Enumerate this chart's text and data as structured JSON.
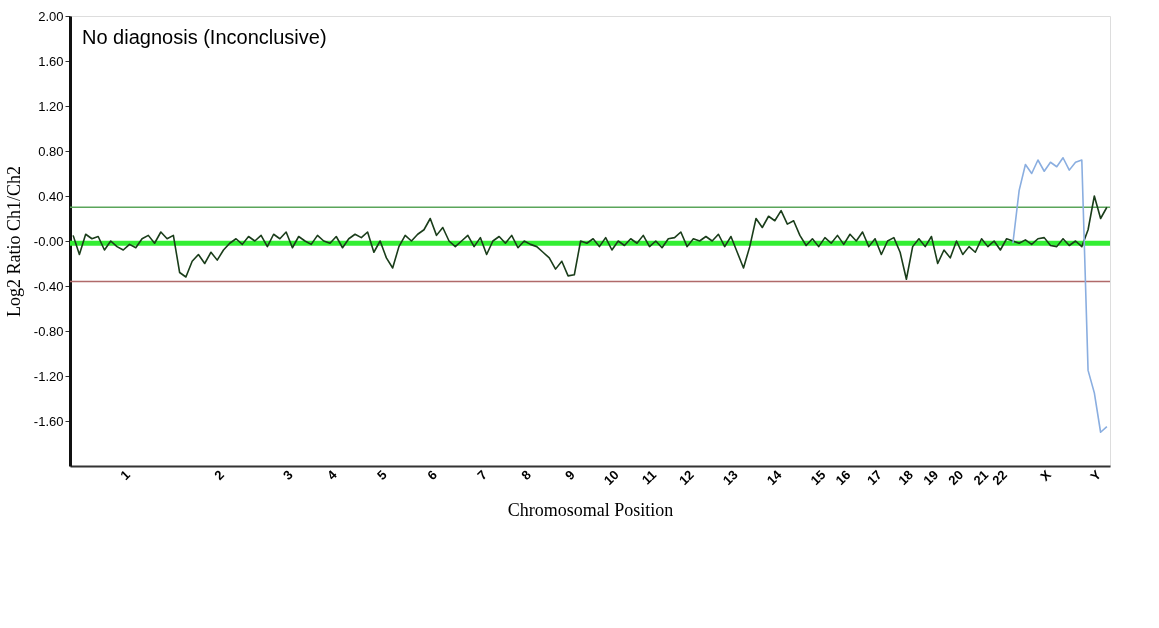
{
  "chart_data": {
    "type": "line",
    "xlabel": "Chromosomal Position",
    "ylabel": "Log2 Ratio Ch1/Ch2",
    "annotations": [
      "No diagnosis (Inconclusive)"
    ],
    "categories": [
      null,
      null,
      null,
      null,
      null,
      null,
      null,
      null,
      "1",
      null,
      null,
      null,
      null,
      null,
      null,
      null,
      null,
      null,
      null,
      null,
      null,
      null,
      null,
      "2",
      null,
      null,
      null,
      null,
      null,
      null,
      null,
      null,
      null,
      null,
      "3",
      null,
      null,
      null,
      null,
      null,
      null,
      "4",
      null,
      null,
      null,
      null,
      null,
      null,
      null,
      "5",
      null,
      null,
      null,
      null,
      null,
      null,
      null,
      "6",
      null,
      null,
      null,
      null,
      null,
      null,
      null,
      "7",
      null,
      null,
      null,
      null,
      null,
      null,
      "8",
      null,
      null,
      null,
      null,
      null,
      null,
      "9",
      null,
      null,
      null,
      null,
      null,
      null,
      "10",
      null,
      null,
      null,
      null,
      null,
      "11",
      null,
      null,
      null,
      null,
      null,
      "12",
      null,
      null,
      null,
      null,
      null,
      null,
      "13",
      null,
      null,
      null,
      null,
      null,
      null,
      "14",
      null,
      null,
      null,
      null,
      null,
      null,
      "15",
      null,
      null,
      null,
      "16",
      null,
      null,
      null,
      null,
      "17",
      null,
      null,
      null,
      null,
      "18",
      null,
      null,
      null,
      "19",
      null,
      null,
      null,
      "20",
      null,
      null,
      null,
      "21",
      null,
      null,
      "22",
      null,
      null,
      null,
      null,
      null,
      null,
      "X",
      null,
      null,
      null,
      null,
      null,
      null,
      null,
      "Y",
      null,
      null
    ],
    "ylim": [
      -2,
      2
    ],
    "yticks": [
      {
        "value": 2,
        "label": "2.00"
      },
      {
        "value": 1.6,
        "label": "1.60"
      },
      {
        "value": 1.2,
        "label": "1.20"
      },
      {
        "value": 0.8,
        "label": "0.80"
      },
      {
        "value": 0.4,
        "label": "0.40"
      },
      {
        "value": 0,
        "label": "-0.00"
      },
      {
        "value": -0.4,
        "label": "-0.40"
      },
      {
        "value": -0.8,
        "label": "-0.80"
      },
      {
        "value": -1.2,
        "label": "-1.20"
      },
      {
        "value": -1.6,
        "label": "-1.60"
      }
    ],
    "grid": false,
    "ref_lines": [
      {
        "axis": "y",
        "value": -0.02,
        "color": "#33ee33"
      },
      {
        "axis": "y",
        "value": 0.3,
        "color": "#5aa55a"
      },
      {
        "axis": "y",
        "value": -0.36,
        "color": "#b06a6a"
      }
    ],
    "series": [
      {
        "color": "#1a3d1a",
        "values": [
          0.05,
          -0.12,
          0.06,
          0.02,
          0.04,
          -0.08,
          0.0,
          -0.05,
          -0.08,
          -0.03,
          -0.06,
          0.02,
          0.05,
          -0.02,
          0.08,
          0.02,
          0.05,
          -0.28,
          -0.32,
          -0.18,
          -0.12,
          -0.2,
          -0.1,
          -0.17,
          -0.08,
          -0.02,
          0.02,
          -0.03,
          0.04,
          0.0,
          0.05,
          -0.05,
          0.06,
          0.02,
          0.08,
          -0.06,
          0.04,
          0.0,
          -0.03,
          0.05,
          0.0,
          -0.02,
          0.04,
          -0.06,
          0.02,
          0.06,
          0.03,
          0.08,
          -0.1,
          0.0,
          -0.15,
          -0.24,
          -0.05,
          0.05,
          0.0,
          0.06,
          0.1,
          0.2,
          0.05,
          0.12,
          0.0,
          -0.05,
          0.0,
          0.05,
          -0.05,
          0.03,
          -0.12,
          0.0,
          0.04,
          -0.02,
          0.05,
          -0.06,
          0.0,
          -0.03,
          -0.05,
          -0.1,
          -0.15,
          -0.25,
          -0.18,
          -0.31,
          -0.3,
          0.0,
          -0.02,
          0.02,
          -0.05,
          0.03,
          -0.08,
          0.0,
          -0.04,
          0.02,
          -0.02,
          0.05,
          -0.05,
          0.0,
          -0.06,
          0.02,
          0.03,
          0.08,
          -0.05,
          0.02,
          0.0,
          0.04,
          0.0,
          0.06,
          -0.05,
          0.04,
          -0.1,
          -0.24,
          -0.05,
          0.2,
          0.12,
          0.22,
          0.18,
          0.27,
          0.15,
          0.18,
          0.05,
          -0.04,
          0.02,
          -0.05,
          0.03,
          -0.02,
          0.05,
          -0.03,
          0.06,
          0.0,
          0.08,
          -0.05,
          0.02,
          -0.12,
          0.0,
          0.03,
          -0.1,
          -0.34,
          -0.05,
          0.02,
          -0.05,
          0.04,
          -0.2,
          -0.08,
          -0.15,
          0.0,
          -0.12,
          -0.05,
          -0.1,
          0.02,
          -0.05,
          0.0,
          -0.08,
          0.02,
          0.0,
          -0.02,
          0.01,
          -0.03,
          0.02,
          0.03,
          -0.04,
          -0.05,
          0.02,
          -0.04,
          0.0,
          -0.05,
          0.1,
          0.4,
          0.2,
          0.3
        ]
      },
      {
        "color": "#8aaee0",
        "values": [
          null,
          null,
          null,
          null,
          null,
          null,
          null,
          null,
          null,
          null,
          null,
          null,
          null,
          null,
          null,
          null,
          null,
          null,
          null,
          null,
          null,
          null,
          null,
          null,
          null,
          null,
          null,
          null,
          null,
          null,
          null,
          null,
          null,
          null,
          null,
          null,
          null,
          null,
          null,
          null,
          null,
          null,
          null,
          null,
          null,
          null,
          null,
          null,
          null,
          null,
          null,
          null,
          null,
          null,
          null,
          null,
          null,
          null,
          null,
          null,
          null,
          null,
          null,
          null,
          null,
          null,
          null,
          null,
          null,
          null,
          null,
          null,
          null,
          null,
          null,
          null,
          null,
          null,
          null,
          null,
          null,
          null,
          null,
          null,
          null,
          null,
          null,
          null,
          null,
          null,
          null,
          null,
          null,
          null,
          null,
          null,
          null,
          null,
          null,
          null,
          null,
          null,
          null,
          null,
          null,
          null,
          null,
          null,
          null,
          null,
          null,
          null,
          null,
          null,
          null,
          null,
          null,
          null,
          null,
          null,
          null,
          null,
          null,
          null,
          null,
          null,
          null,
          null,
          null,
          null,
          null,
          null,
          null,
          null,
          null,
          null,
          null,
          null,
          null,
          null,
          null,
          null,
          null,
          null,
          null,
          null,
          null,
          null,
          null,
          null,
          -0.02,
          0.45,
          0.68,
          0.6,
          0.72,
          0.62,
          0.7,
          0.66,
          0.74,
          0.63,
          0.7,
          0.72,
          -1.15,
          -1.35,
          -1.7,
          -1.65
        ]
      }
    ]
  }
}
